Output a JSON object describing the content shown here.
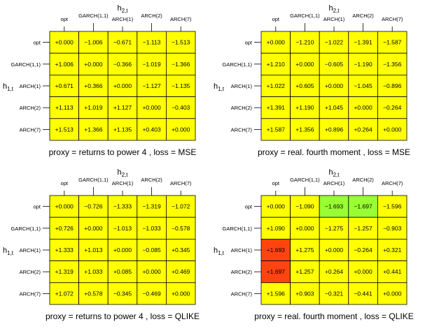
{
  "figure": {
    "colors": {
      "cell_default": "#ffff00",
      "cell_green": "#99ff33",
      "cell_red": "#ff4411",
      "grid": "#000000"
    }
  },
  "chart_data": [
    {
      "type": "heatmap",
      "title": "proxy = returns to power 4 , loss = MSE",
      "xlabel_main": "h",
      "xlabel_sub": "2,t",
      "ylabel_main": "h",
      "ylabel_sub": "1,t",
      "categories": [
        "opt",
        "GARCH(1,1)",
        "ARCH(1)",
        "ARCH(2)",
        "ARCH(7)"
      ],
      "values": [
        [
          "+0.000",
          "−1.006",
          "−0.671",
          "−1.113",
          "−1.513"
        ],
        [
          "+1.006",
          "+0.000",
          "−0.366",
          "−1.019",
          "−1.366"
        ],
        [
          "+0.671",
          "+0.366",
          "+0.000",
          "−1.127",
          "−1.135"
        ],
        [
          "+1.113",
          "+1.019",
          "+1.127",
          "+0.000",
          "−0.403"
        ],
        [
          "+1.513",
          "+1.366",
          "+1.135",
          "+0.403",
          "+0.000"
        ]
      ],
      "highlight": [
        [
          "y",
          "y",
          "y",
          "y",
          "y"
        ],
        [
          "y",
          "y",
          "y",
          "y",
          "y"
        ],
        [
          "y",
          "y",
          "y",
          "y",
          "y"
        ],
        [
          "y",
          "y",
          "y",
          "y",
          "y"
        ],
        [
          "y",
          "y",
          "y",
          "y",
          "y"
        ]
      ]
    },
    {
      "type": "heatmap",
      "title": "proxy = real. fourth moment , loss = MSE",
      "xlabel_main": "h",
      "xlabel_sub": "2,t",
      "ylabel_main": "h",
      "ylabel_sub": "1,t",
      "categories": [
        "opt",
        "GARCH(1,1)",
        "ARCH(1)",
        "ARCH(2)",
        "ARCH(7)"
      ],
      "values": [
        [
          "+0.000",
          "−1.210",
          "−1.022",
          "−1.391",
          "−1.587"
        ],
        [
          "+1.210",
          "+0.000",
          "−0.605",
          "−1.190",
          "−1.356"
        ],
        [
          "+1.022",
          "+0.605",
          "+0.000",
          "−1.045",
          "−0.896"
        ],
        [
          "+1.391",
          "+1.190",
          "+1.045",
          "+0.000",
          "−0.264"
        ],
        [
          "+1.587",
          "+1.356",
          "+0.896",
          "+0.264",
          "+0.000"
        ]
      ],
      "highlight": [
        [
          "y",
          "y",
          "y",
          "y",
          "y"
        ],
        [
          "y",
          "y",
          "y",
          "y",
          "y"
        ],
        [
          "y",
          "y",
          "y",
          "y",
          "y"
        ],
        [
          "y",
          "y",
          "y",
          "y",
          "y"
        ],
        [
          "y",
          "y",
          "y",
          "y",
          "y"
        ]
      ]
    },
    {
      "type": "heatmap",
      "title": "proxy = returns to power 4 , loss = QLIKE",
      "xlabel_main": "h",
      "xlabel_sub": "2,t",
      "ylabel_main": "h",
      "ylabel_sub": "1,t",
      "categories": [
        "opt",
        "GARCH(1,1)",
        "ARCH(1)",
        "ARCH(2)",
        "ARCH(7)"
      ],
      "values": [
        [
          "+0.000",
          "−0.726",
          "−1.333",
          "−1.319",
          "−1.072"
        ],
        [
          "+0.726",
          "+0.000",
          "−1.013",
          "−1.033",
          "−0.578"
        ],
        [
          "+1.333",
          "+1.013",
          "+0.000",
          "−0.085",
          "+0.345"
        ],
        [
          "+1.319",
          "+1.033",
          "+0.085",
          "+0.000",
          "+0.469"
        ],
        [
          "+1.072",
          "+0.578",
          "−0.345",
          "−0.469",
          "+0.000"
        ]
      ],
      "highlight": [
        [
          "y",
          "y",
          "y",
          "y",
          "y"
        ],
        [
          "y",
          "y",
          "y",
          "y",
          "y"
        ],
        [
          "y",
          "y",
          "y",
          "y",
          "y"
        ],
        [
          "y",
          "y",
          "y",
          "y",
          "y"
        ],
        [
          "y",
          "y",
          "y",
          "y",
          "y"
        ]
      ]
    },
    {
      "type": "heatmap",
      "title": "proxy = real. fourth moment , loss = QLIKE",
      "xlabel_main": "h",
      "xlabel_sub": "2,t",
      "ylabel_main": "h",
      "ylabel_sub": "1,t",
      "categories": [
        "opt",
        "GARCH(1,1)",
        "ARCH(1)",
        "ARCH(2)",
        "ARCH(7)"
      ],
      "values": [
        [
          "+0.000",
          "−1.090",
          "−1.693",
          "−1.697",
          "−1.596"
        ],
        [
          "+1.090",
          "+0.000",
          "−1.275",
          "−1.257",
          "−0.903"
        ],
        [
          "+1.693",
          "+1.275",
          "+0.000",
          "−0.264",
          "+0.321"
        ],
        [
          "+1.697",
          "+1.257",
          "+0.264",
          "+0.000",
          "+0.441"
        ],
        [
          "+1.596",
          "+0.903",
          "−0.321",
          "−0.441",
          "+0.000"
        ]
      ],
      "highlight": [
        [
          "y",
          "y",
          "g",
          "g",
          "y"
        ],
        [
          "y",
          "y",
          "y",
          "y",
          "y"
        ],
        [
          "r",
          "y",
          "y",
          "y",
          "y"
        ],
        [
          "r",
          "y",
          "y",
          "y",
          "y"
        ],
        [
          "y",
          "y",
          "y",
          "y",
          "y"
        ]
      ]
    }
  ]
}
